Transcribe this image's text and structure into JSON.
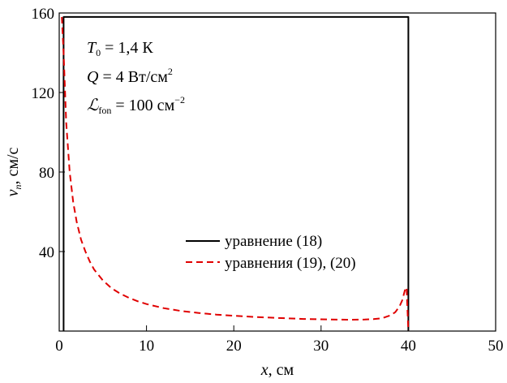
{
  "chart_data": {
    "type": "line",
    "xlabel": {
      "var": "x",
      "unit": ", см"
    },
    "ylabel": {
      "var": "v",
      "sub": "n",
      "unit": ", см/с"
    },
    "xlim": [
      0,
      50
    ],
    "ylim": [
      0,
      160
    ],
    "xticks": [
      0,
      10,
      20,
      30,
      40,
      50
    ],
    "yticks": [
      40,
      80,
      120,
      160
    ],
    "grid": false,
    "legend_position": "lower-right",
    "annotations": {
      "T0": {
        "var": "T",
        "sub": "0",
        "rest": " = 1,4 К"
      },
      "Q": {
        "var": "Q",
        "rest": "  = 4 Вт/см",
        "sup": "2"
      },
      "L": {
        "var": "ℒ",
        "sub": "fon",
        "rest": " = 100 см",
        "sup": "−2"
      }
    },
    "series": [
      {
        "name": "уравнение (18)",
        "style": "solid",
        "color": "#000000",
        "x": [
          0.5,
          0.5,
          40.0,
          40.0
        ],
        "y": [
          0,
          158,
          158,
          0
        ]
      },
      {
        "name": "уравнения (19), (20)",
        "style": "dashed",
        "color": "#e00000",
        "x": [
          0.3,
          0.5,
          0.8,
          1.2,
          1.6,
          2,
          2.5,
          3,
          3.5,
          4,
          5,
          6,
          7,
          8,
          9,
          10,
          12,
          14,
          16,
          18,
          20,
          22,
          25,
          28,
          30,
          33,
          35,
          36,
          37,
          38,
          38.5,
          39,
          39.3,
          39.6,
          39.8,
          40.0
        ],
        "y": [
          158,
          140,
          105,
          80,
          65,
          55,
          46,
          40,
          35,
          31,
          25.5,
          21.5,
          18.8,
          16.7,
          15,
          13.6,
          11.5,
          10.1,
          9.1,
          8.3,
          7.7,
          7.2,
          6.6,
          6.1,
          5.9,
          5.7,
          5.8,
          6.0,
          6.5,
          8.0,
          9.5,
          12.5,
          15.5,
          20.5,
          22,
          0
        ]
      }
    ]
  }
}
